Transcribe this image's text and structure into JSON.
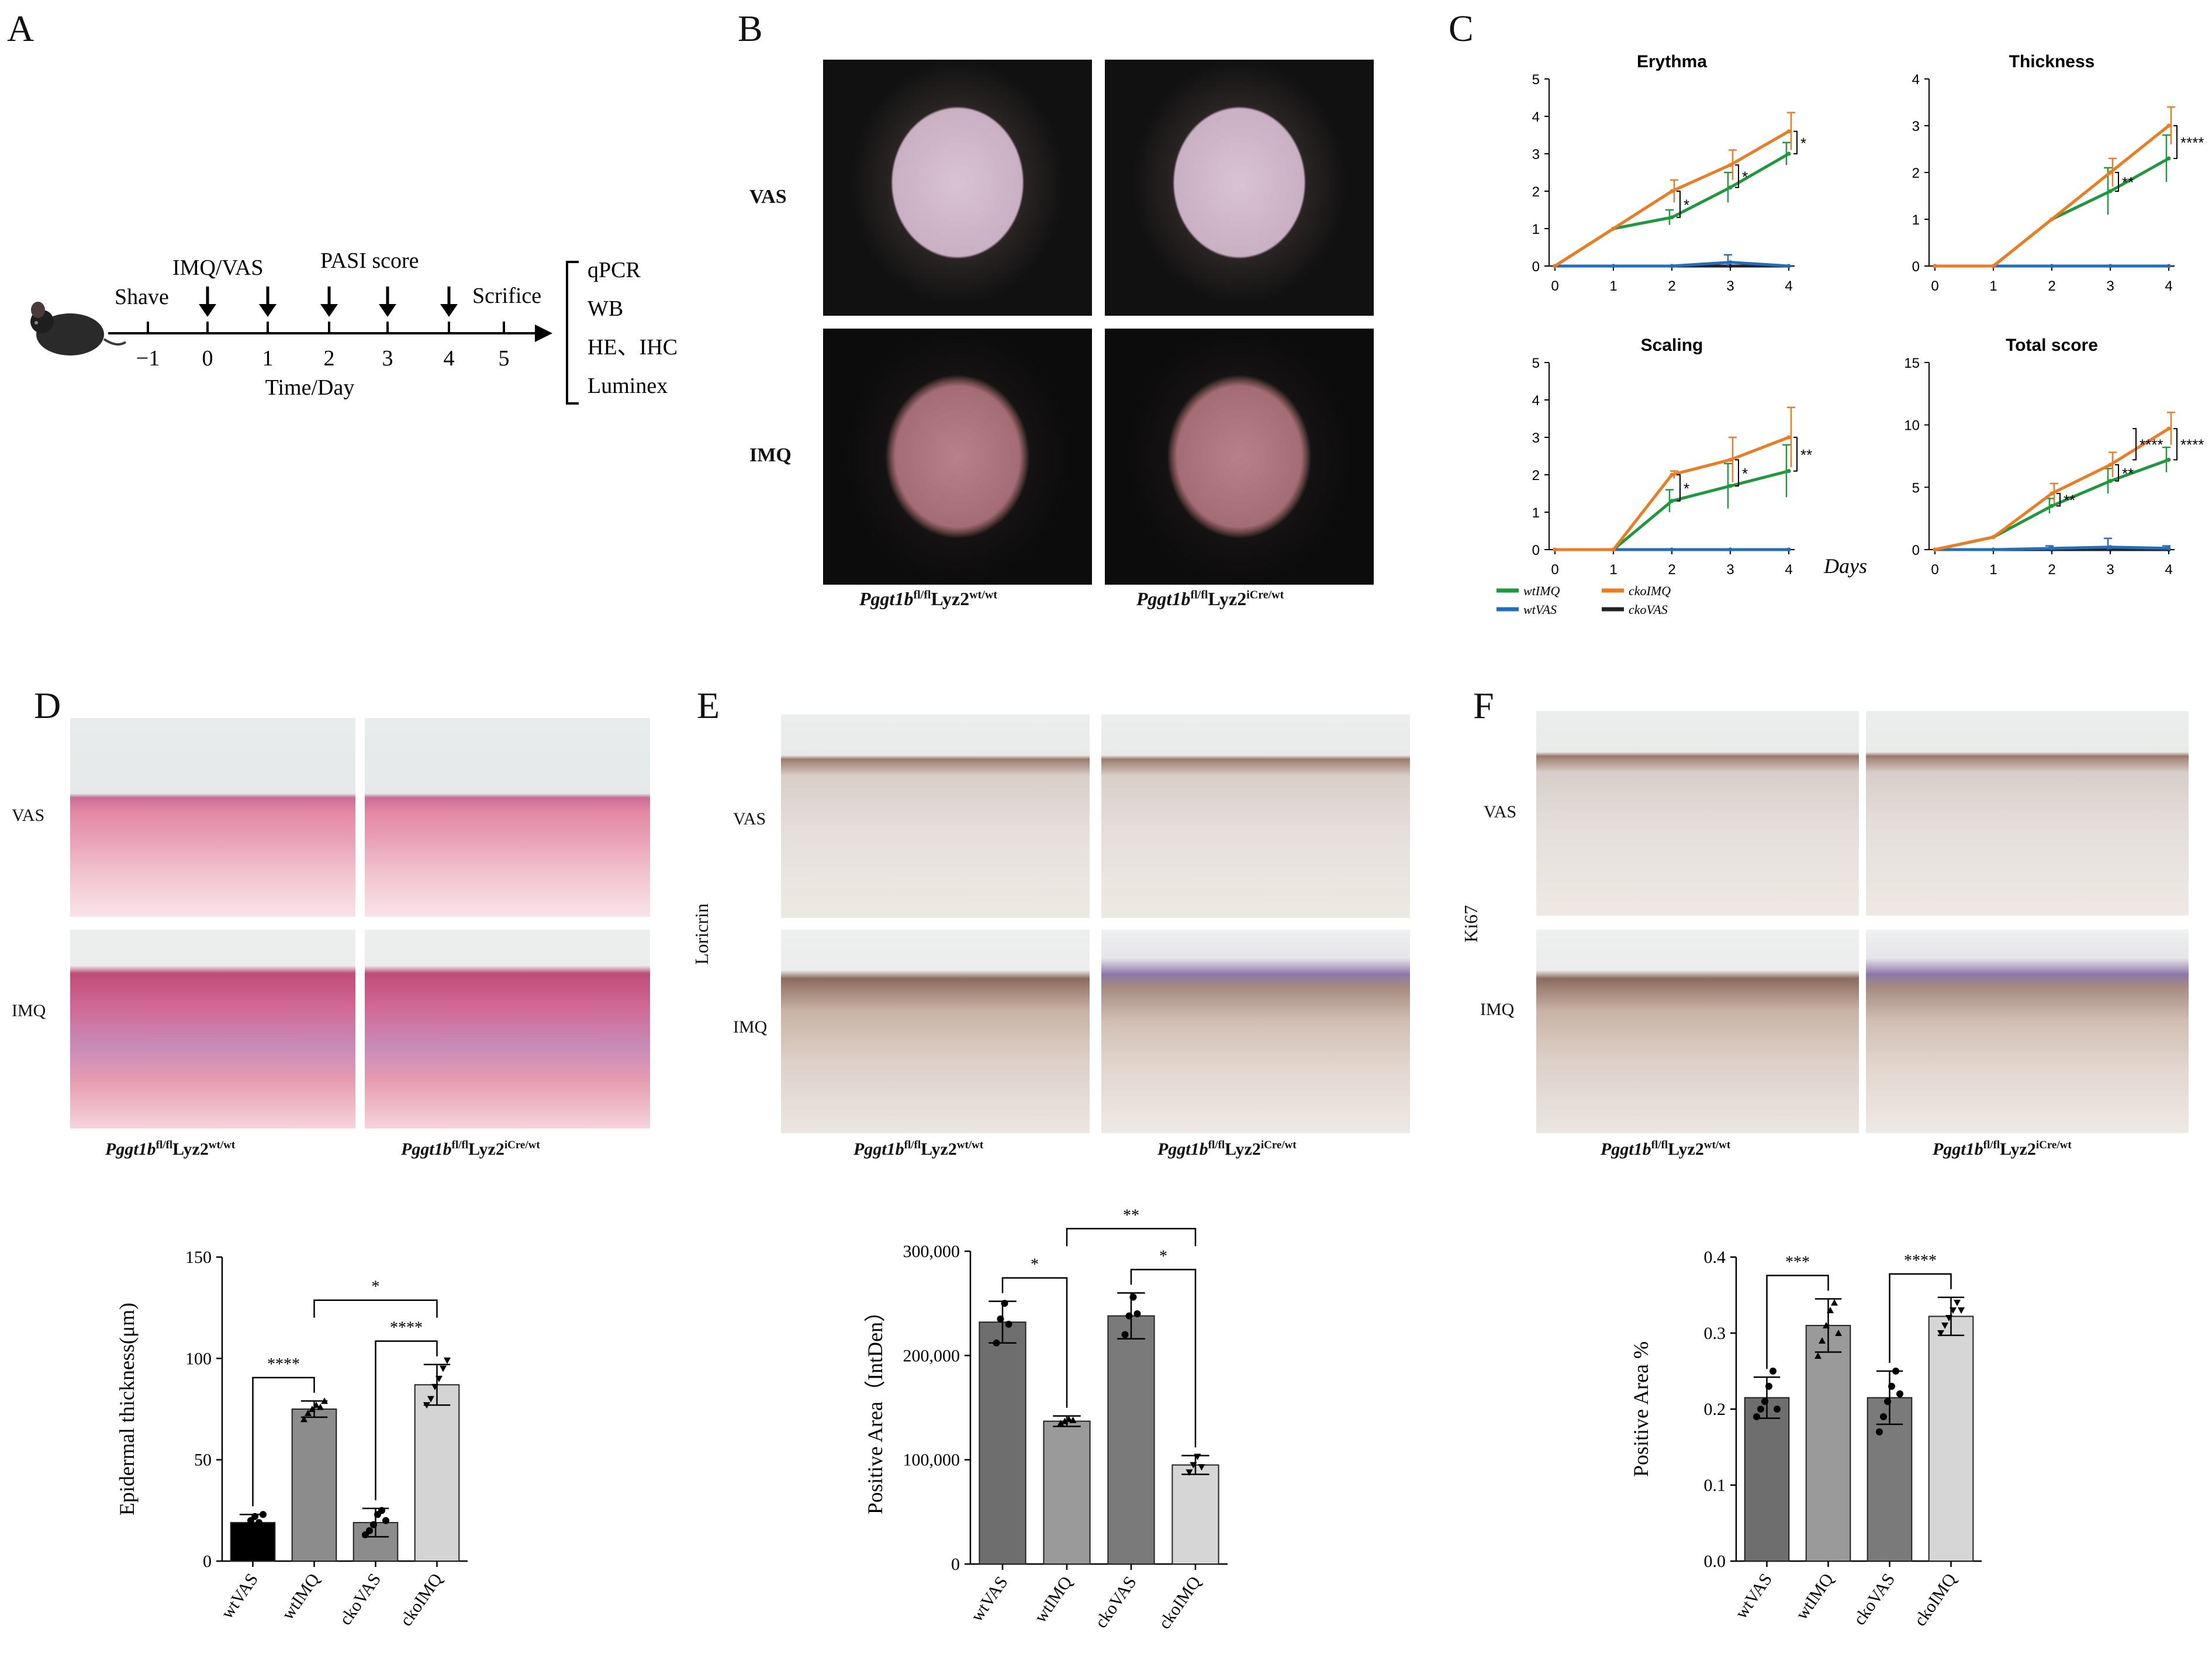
{
  "panels": {
    "A": "A",
    "B": "B",
    "C": "C",
    "D": "D",
    "E": "E",
    "F": "F"
  },
  "timeline": {
    "shave": "Shave",
    "imq_vas": "IMQ/VAS",
    "pasi": "PASI  score",
    "scrifice": "Scrifice",
    "ticks": [
      "−1",
      "0",
      "1",
      "2",
      "3",
      "4",
      "5"
    ],
    "axis_label": "Time/Day",
    "assays": [
      "qPCR",
      "WB",
      "HE、IHC",
      "Luminex"
    ]
  },
  "rows": {
    "vas": "VAS",
    "imq": "IMQ"
  },
  "genotypes": {
    "wt_base": "Pggt1b",
    "wt_sup": "fl/fl",
    "wt_lyz": "Lyz2",
    "wt_lyz_sup": "wt/wt",
    "cko_base": "Pggt1b",
    "cko_sup": "fl/fl",
    "cko_lyz": "Lyz2",
    "cko_lyz_sup": "iCre/wt"
  },
  "stain_labels": {
    "e": "Loricrin",
    "f": "Ki67"
  },
  "legend": [
    {
      "name": "wtIMQ",
      "color": "#1a9a3a"
    },
    {
      "name": "ckoIMQ",
      "color": "#f07a1e"
    },
    {
      "name": "wtVAS",
      "color": "#1f6fc0"
    },
    {
      "name": "ckoVAS",
      "color": "#222222"
    }
  ],
  "days_label": "Days",
  "chart_data": [
    {
      "type": "line",
      "title": "Erythma",
      "x": [
        0,
        1,
        2,
        3,
        4
      ],
      "ylim": [
        0,
        5
      ],
      "yticks": [
        "0",
        "1",
        "2",
        "3",
        "4",
        "5"
      ],
      "series": [
        {
          "name": "wtIMQ",
          "values": [
            0,
            1,
            1.3,
            2.1,
            3.0
          ],
          "err": [
            0,
            0,
            0.2,
            0.4,
            0.3
          ]
        },
        {
          "name": "ckoIMQ",
          "values": [
            0,
            1,
            2.0,
            2.7,
            3.6
          ],
          "err": [
            0,
            0,
            0.3,
            0.4,
            0.5
          ]
        },
        {
          "name": "wtVAS",
          "values": [
            0,
            0,
            0,
            0.1,
            0
          ],
          "err": [
            0,
            0,
            0,
            0.2,
            0
          ]
        },
        {
          "name": "ckoVAS",
          "values": [
            0,
            0,
            0,
            0,
            0
          ],
          "err": [
            0,
            0,
            0,
            0,
            0
          ]
        }
      ],
      "annotations": [
        {
          "x": 2,
          "text": "*"
        },
        {
          "x": 3,
          "text": "*"
        },
        {
          "x": 4,
          "text": "*"
        }
      ]
    },
    {
      "type": "line",
      "title": "Thickness",
      "x": [
        0,
        1,
        2,
        3,
        4
      ],
      "ylim": [
        0,
        4
      ],
      "yticks": [
        "0",
        "1",
        "2",
        "3",
        "4"
      ],
      "series": [
        {
          "name": "wtIMQ",
          "values": [
            0,
            0,
            1,
            1.6,
            2.3
          ],
          "err": [
            0,
            0,
            0,
            0.5,
            0.5
          ]
        },
        {
          "name": "ckoIMQ",
          "values": [
            0,
            0,
            1,
            2.0,
            3.0
          ],
          "err": [
            0,
            0,
            0,
            0.3,
            0.4
          ]
        },
        {
          "name": "wtVAS",
          "values": [
            0,
            0,
            0,
            0,
            0
          ],
          "err": [
            0,
            0,
            0,
            0,
            0
          ]
        },
        {
          "name": "ckoVAS",
          "values": [
            0,
            0,
            0,
            0,
            0
          ],
          "err": [
            0,
            0,
            0,
            0,
            0
          ]
        }
      ],
      "annotations": [
        {
          "x": 3,
          "text": "**"
        },
        {
          "x": 4,
          "text": "****"
        }
      ]
    },
    {
      "type": "line",
      "title": "Scaling",
      "x": [
        0,
        1,
        2,
        3,
        4
      ],
      "ylim": [
        0,
        5
      ],
      "yticks": [
        "0",
        "1",
        "2",
        "3",
        "4",
        "5"
      ],
      "series": [
        {
          "name": "wtIMQ",
          "values": [
            0,
            0,
            1.3,
            1.7,
            2.1
          ],
          "err": [
            0,
            0,
            0.3,
            0.6,
            0.7
          ]
        },
        {
          "name": "ckoIMQ",
          "values": [
            0,
            0,
            2.0,
            2.4,
            3.0
          ],
          "err": [
            0,
            0,
            0.1,
            0.6,
            0.8
          ]
        },
        {
          "name": "wtVAS",
          "values": [
            0,
            0,
            0,
            0,
            0
          ],
          "err": [
            0,
            0,
            0,
            0,
            0
          ]
        },
        {
          "name": "ckoVAS",
          "values": [
            0,
            0,
            0,
            0,
            0
          ],
          "err": [
            0,
            0,
            0,
            0,
            0
          ]
        }
      ],
      "annotations": [
        {
          "x": 2,
          "text": "*"
        },
        {
          "x": 3,
          "text": "*"
        },
        {
          "x": 4,
          "text": "**"
        }
      ]
    },
    {
      "type": "line",
      "title": "Total score",
      "x": [
        0,
        1,
        2,
        3,
        4
      ],
      "ylim": [
        0,
        15
      ],
      "yticks": [
        "0",
        "5",
        "10",
        "15"
      ],
      "series": [
        {
          "name": "wtIMQ",
          "values": [
            0,
            1,
            3.5,
            5.5,
            7.2
          ],
          "err": [
            0,
            0,
            0.6,
            1.0,
            1.0
          ]
        },
        {
          "name": "ckoIMQ",
          "values": [
            0,
            1,
            4.5,
            6.8,
            9.7
          ],
          "err": [
            0,
            0,
            0.8,
            1.0,
            1.3
          ]
        },
        {
          "name": "wtVAS",
          "values": [
            0,
            0,
            0.1,
            0.2,
            0.1
          ],
          "err": [
            0,
            0,
            0.2,
            0.7,
            0.2
          ]
        },
        {
          "name": "ckoVAS",
          "values": [
            0,
            0,
            0,
            0,
            0
          ],
          "err": [
            0,
            0,
            0,
            0,
            0
          ]
        }
      ],
      "annotations": [
        {
          "x": 2,
          "text": "**"
        },
        {
          "x": 3,
          "text": "**"
        },
        {
          "x": 4,
          "text": "****"
        },
        {
          "x": 4,
          "text": "****"
        }
      ]
    },
    {
      "type": "bar",
      "categories": [
        "wtVAS",
        "wtIMQ",
        "ckoVAS",
        "ckoIMQ"
      ],
      "values": [
        19,
        75,
        19,
        87
      ],
      "err": [
        4,
        4,
        7,
        10
      ],
      "colors": [
        "#000000",
        "#8c8c8c",
        "#8c8c8c",
        "#d4d4d4"
      ],
      "ylabel": "Epidermal thickness(μm)",
      "ylim": [
        0,
        150
      ],
      "yticks": [
        "0",
        "50",
        "100",
        "150"
      ],
      "points": [
        [
          14,
          17,
          20,
          22,
          19,
          23
        ],
        [
          70,
          73,
          75,
          77,
          76,
          79
        ],
        [
          13,
          15,
          18,
          23,
          25,
          20
        ],
        [
          77,
          80,
          86,
          90,
          95,
          99
        ]
      ],
      "comparisons": [
        {
          "a": 0,
          "b": 1,
          "text": "****"
        },
        {
          "a": 2,
          "b": 3,
          "text": "****"
        },
        {
          "a": 1,
          "b": 3,
          "text": "*"
        }
      ]
    },
    {
      "type": "bar",
      "categories": [
        "wtVAS",
        "wtIMQ",
        "ckoVAS",
        "ckoIMQ"
      ],
      "values": [
        232000,
        137000,
        238000,
        95000
      ],
      "err": [
        20000,
        5000,
        22000,
        9000
      ],
      "colors": [
        "#6e6e6e",
        "#9a9a9a",
        "#7a7a7a",
        "#d6d6d6"
      ],
      "ylabel": "Positive Area（IntDen）",
      "ylim": [
        0,
        300000
      ],
      "yticks": [
        "0",
        "100,000",
        "200,000",
        "300,000"
      ],
      "points": [
        [
          212000,
          235000,
          250000,
          230000
        ],
        [
          135000,
          137000,
          139000,
          138000
        ],
        [
          220000,
          238000,
          256000,
          240000
        ],
        [
          88000,
          95000,
          103000,
          93000
        ]
      ],
      "comparisons": [
        {
          "a": 0,
          "b": 1,
          "text": "*"
        },
        {
          "a": 2,
          "b": 3,
          "text": "*"
        },
        {
          "a": 1,
          "b": 3,
          "text": "**"
        }
      ]
    },
    {
      "type": "bar",
      "categories": [
        "wtVAS",
        "wtIMQ",
        "ckoVAS",
        "ckoIMQ"
      ],
      "values": [
        0.215,
        0.31,
        0.215,
        0.322
      ],
      "err": [
        0.027,
        0.035,
        0.035,
        0.025
      ],
      "colors": [
        "#6e6e6e",
        "#9a9a9a",
        "#7a7a7a",
        "#d6d6d6"
      ],
      "ylabel": "Positive Area %",
      "ylim": [
        0,
        0.4
      ],
      "yticks": [
        "0.0",
        "0.1",
        "0.2",
        "0.3",
        "0.4"
      ],
      "points": [
        [
          0.19,
          0.2,
          0.21,
          0.23,
          0.25,
          0.2
        ],
        [
          0.27,
          0.29,
          0.31,
          0.33,
          0.34,
          0.3
        ],
        [
          0.17,
          0.19,
          0.21,
          0.23,
          0.25,
          0.22
        ],
        [
          0.3,
          0.31,
          0.32,
          0.33,
          0.34,
          0.33
        ]
      ],
      "comparisons": [
        {
          "a": 0,
          "b": 1,
          "text": "***"
        },
        {
          "a": 2,
          "b": 3,
          "text": "****"
        }
      ]
    }
  ]
}
